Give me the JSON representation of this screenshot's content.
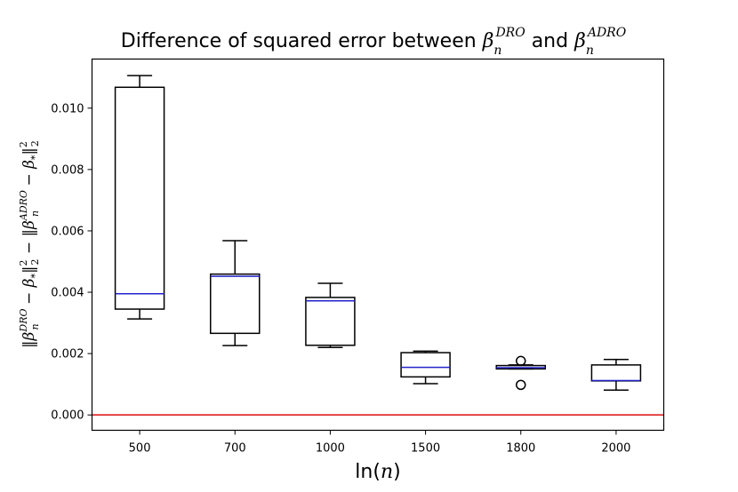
{
  "chart_data": {
    "type": "box",
    "title": {
      "prefix": "Difference of squared error between ",
      "sym1": "β",
      "sym1_sub": "n",
      "sym1_sup": "DRO",
      "middle": " and ",
      "sym2": "β",
      "sym2_sub": "n",
      "sym2_sup": "ADRO"
    },
    "xlabel": {
      "text": "ln(",
      "var": "n",
      "close": ")"
    },
    "ylabel": {
      "parts": [
        "‖β",
        "DRO",
        "n",
        " − β",
        "*",
        "‖",
        "2",
        "2",
        " − ‖β",
        "ADRO",
        "n",
        " − β",
        "*",
        "‖",
        "2",
        "2"
      ]
    },
    "categories": [
      "500",
      "700",
      "1000",
      "1500",
      "1800",
      "2000"
    ],
    "ylim": [
      -0.0005,
      0.0116
    ],
    "yticks": [
      0.0,
      0.002,
      0.004,
      0.006,
      0.008,
      0.01
    ],
    "ytick_labels": [
      "0.000",
      "0.002",
      "0.004",
      "0.006",
      "0.008",
      "0.010"
    ],
    "boxes": [
      {
        "whislo": 0.00313,
        "q1": 0.00345,
        "med": 0.00395,
        "q3": 0.01068,
        "whishi": 0.01106,
        "fliers": []
      },
      {
        "whislo": 0.00226,
        "q1": 0.00266,
        "med": 0.00452,
        "q3": 0.00459,
        "whishi": 0.00568,
        "fliers": []
      },
      {
        "whislo": 0.0022,
        "q1": 0.00227,
        "med": 0.00372,
        "q3": 0.00383,
        "whishi": 0.00429,
        "fliers": []
      },
      {
        "whislo": 0.00102,
        "q1": 0.00124,
        "med": 0.00155,
        "q3": 0.00203,
        "whishi": 0.00208,
        "fliers": []
      },
      {
        "whislo": 0.0015,
        "q1": 0.0015,
        "med": 0.00154,
        "q3": 0.00161,
        "whishi": 0.00163,
        "fliers": [
          0.00176,
          0.00098
        ]
      },
      {
        "whislo": 0.00081,
        "q1": 0.00111,
        "med": 0.00112,
        "q3": 0.00163,
        "whishi": 0.00181,
        "fliers": []
      }
    ],
    "reference_line": {
      "y": 0.0,
      "color": "#e02020"
    },
    "box_color": "#000000",
    "median_color": "#2222cc",
    "grid": false
  }
}
